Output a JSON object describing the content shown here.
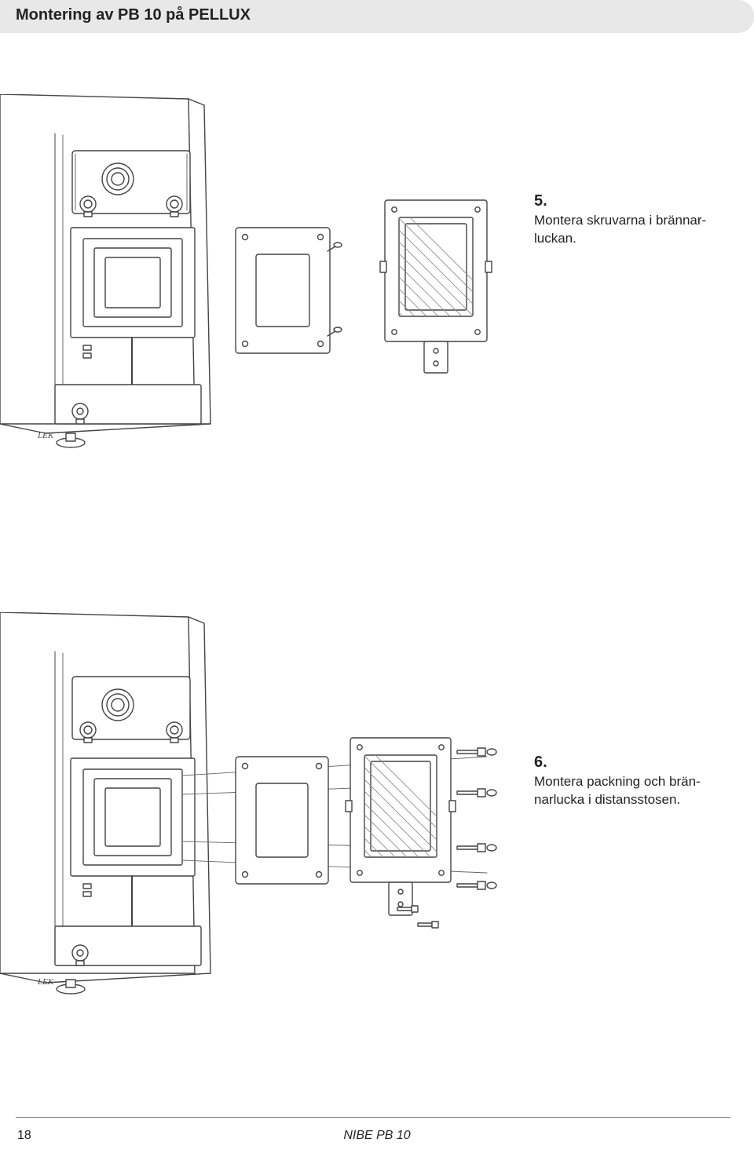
{
  "header": {
    "title": "Montering av PB 10 på PELLUX"
  },
  "steps": [
    {
      "num": "5.",
      "text": "Montera skruvarna i brännar-\nluckan."
    },
    {
      "num": "6.",
      "text": "Montera packning och brän-\nnarlucka i distansstosen."
    }
  ],
  "diagrams": {
    "marker": "LEK",
    "stroke": "#444444",
    "stroke_thin": "#666666",
    "fill_bg": "#ffffff",
    "hatch": "#888888"
  },
  "footer": {
    "page": "18",
    "model": "NIBE PB 10"
  }
}
